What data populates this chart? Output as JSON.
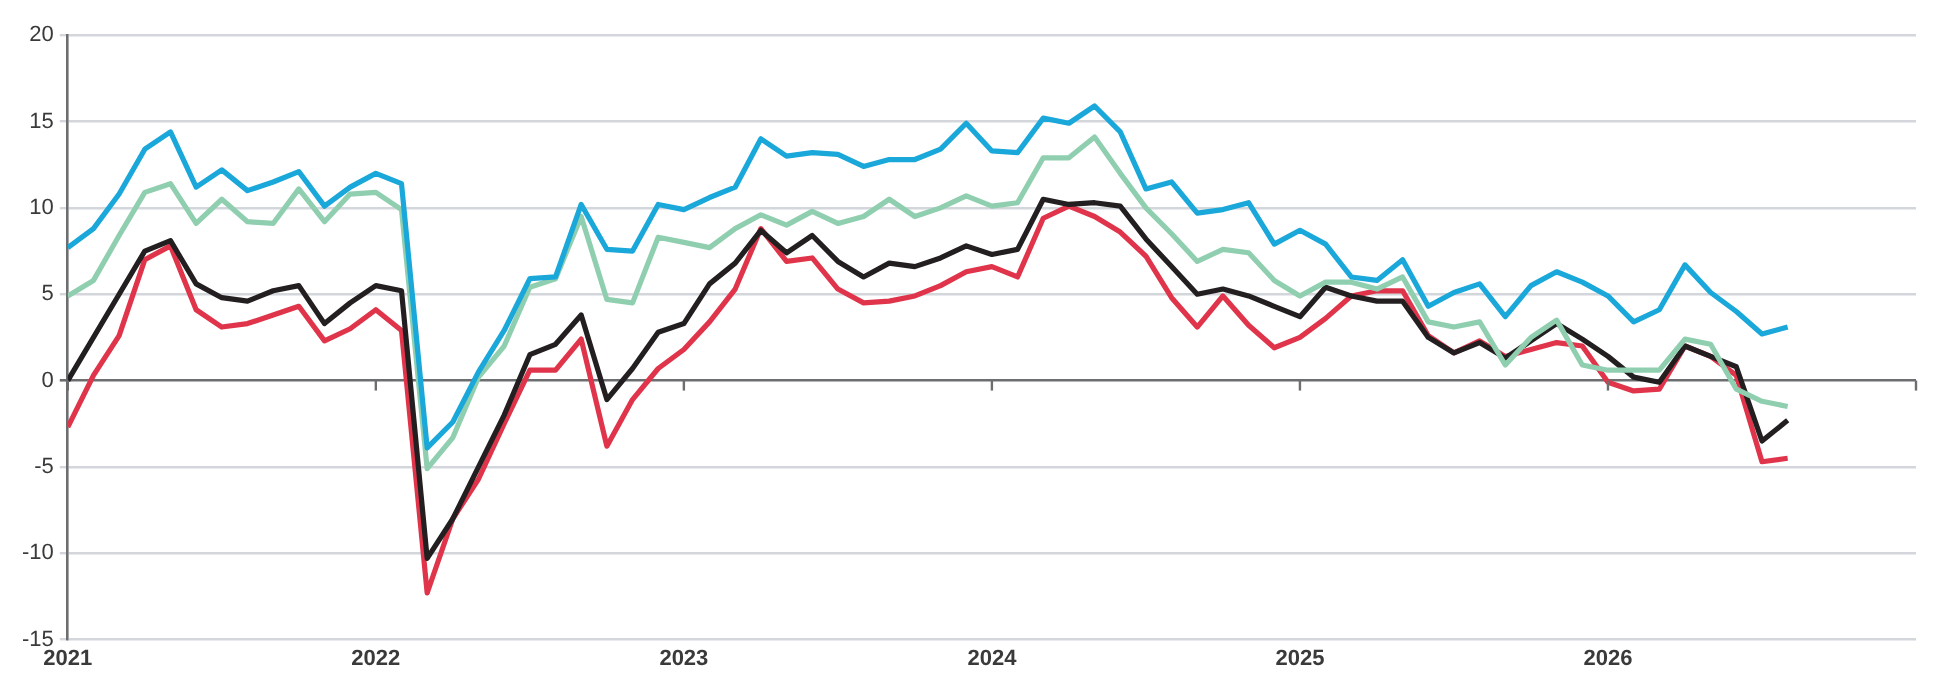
{
  "chart_data": {
    "type": "line",
    "x": [
      "2021-01",
      "2021-02",
      "2021-03",
      "2021-04",
      "2021-05",
      "2021-06",
      "2021-07",
      "2021-08",
      "2021-09",
      "2021-10",
      "2021-11",
      "2021-12",
      "2022-01",
      "2022-02",
      "2022-03",
      "2022-04",
      "2022-05",
      "2022-06",
      "2022-07",
      "2022-08",
      "2022-09",
      "2022-10",
      "2022-11",
      "2022-12",
      "2023-01",
      "2023-02",
      "2023-03",
      "2023-04",
      "2023-05",
      "2023-06",
      "2023-07",
      "2023-08",
      "2023-09",
      "2023-10",
      "2023-11",
      "2023-12",
      "2024-01",
      "2024-02",
      "2024-03",
      "2024-04",
      "2024-05",
      "2024-06",
      "2024-07",
      "2024-08",
      "2024-09",
      "2024-10",
      "2024-11",
      "2024-12",
      "2025-01",
      "2025-02",
      "2025-03",
      "2025-04",
      "2025-05",
      "2025-06",
      "2025-07",
      "2025-08",
      "2025-09",
      "2025-10",
      "2025-11",
      "2025-12",
      "2026-01",
      "2026-02",
      "2026-03",
      "2026-04",
      "2026-05",
      "2026-06",
      "2026-07",
      "2026-08"
    ],
    "series": [
      {
        "color": "#1aa7d9",
        "values": [
          7.7,
          8.8,
          10.8,
          13.4,
          14.4,
          11.2,
          12.2,
          11.0,
          11.5,
          12.1,
          10.1,
          11.2,
          12.0,
          11.4,
          -3.9,
          -2.4,
          0.5,
          2.9,
          5.9,
          6.0,
          10.2,
          7.6,
          7.5,
          10.2,
          9.9,
          10.6,
          11.2,
          14.0,
          13.0,
          13.2,
          13.1,
          12.4,
          12.8,
          12.8,
          13.4,
          14.9,
          13.3,
          13.2,
          15.2,
          14.9,
          15.9,
          14.4,
          11.1,
          11.5,
          9.7,
          9.9,
          10.3,
          7.9,
          8.7,
          7.9,
          6.0,
          5.8,
          7.0,
          4.3,
          5.1,
          5.6,
          3.7,
          5.5,
          6.3,
          5.7,
          4.9,
          3.4,
          4.1,
          6.7,
          5.1,
          4.0,
          2.7,
          3.1
        ]
      },
      {
        "color": "#8fcfb0",
        "values": [
          4.9,
          5.8,
          8.4,
          10.9,
          11.4,
          9.1,
          10.5,
          9.2,
          9.1,
          11.1,
          9.2,
          10.8,
          10.9,
          9.9,
          -5.1,
          -3.3,
          0.2,
          2.0,
          5.4,
          5.9,
          9.5,
          4.7,
          4.5,
          8.3,
          8.0,
          7.7,
          8.8,
          9.6,
          9.0,
          9.8,
          9.1,
          9.5,
          10.5,
          9.5,
          10.0,
          10.7,
          10.1,
          10.3,
          12.9,
          12.9,
          14.1,
          12.0,
          10.0,
          8.5,
          6.9,
          7.6,
          7.4,
          5.8,
          4.9,
          5.7,
          5.7,
          5.3,
          6.0,
          3.4,
          3.1,
          3.4,
          0.9,
          2.5,
          3.5,
          0.9,
          0.6,
          0.6,
          0.6,
          2.4,
          2.1,
          -0.5,
          -1.2,
          -1.5
        ]
      },
      {
        "color": "#231f20",
        "values": [
          0.0,
          2.5,
          5.0,
          7.5,
          8.1,
          5.6,
          4.8,
          4.6,
          5.2,
          5.5,
          3.3,
          4.5,
          5.5,
          5.2,
          -10.3,
          -8.0,
          -5.0,
          -2.0,
          1.5,
          2.1,
          3.8,
          -1.1,
          0.7,
          2.8,
          3.3,
          5.6,
          6.8,
          8.7,
          7.4,
          8.4,
          6.9,
          6.0,
          6.8,
          6.6,
          7.1,
          7.8,
          7.3,
          7.6,
          10.5,
          10.2,
          10.3,
          10.1,
          8.2,
          6.6,
          5.0,
          5.3,
          4.9,
          4.3,
          3.7,
          5.4,
          4.9,
          4.6,
          4.6,
          2.5,
          1.6,
          2.2,
          1.3,
          2.3,
          3.3,
          2.4,
          1.4,
          0.2,
          -0.1,
          2.0,
          1.4,
          0.8,
          -3.5,
          -2.3
        ]
      },
      {
        "color": "#e0344b",
        "values": [
          -2.7,
          0.3,
          2.6,
          7.0,
          7.8,
          4.1,
          3.1,
          3.3,
          3.8,
          4.3,
          2.3,
          3.0,
          4.1,
          2.9,
          -12.3,
          -8.0,
          -5.7,
          -2.5,
          0.6,
          0.6,
          2.4,
          -3.8,
          -1.1,
          0.7,
          1.8,
          3.4,
          5.3,
          8.8,
          6.9,
          7.1,
          5.3,
          4.5,
          4.6,
          4.9,
          5.5,
          6.3,
          6.6,
          6.0,
          9.4,
          10.1,
          9.5,
          8.6,
          7.2,
          4.8,
          3.1,
          4.9,
          3.2,
          1.9,
          2.5,
          3.6,
          4.9,
          5.2,
          5.2,
          2.6,
          1.6,
          2.3,
          1.4,
          1.8,
          2.2,
          2.0,
          -0.1,
          -0.6,
          -0.5,
          2.0,
          1.4,
          0.3,
          -4.7,
          -4.5
        ]
      }
    ],
    "xlim": [
      "2021",
      "2027"
    ],
    "xticks": [
      "2021",
      "2022",
      "2023",
      "2024",
      "2025",
      "2026",
      {
        "value": "2027",
        "label": null
      }
    ],
    "ylim": [
      -15,
      20
    ],
    "yticks": [
      -15,
      -10,
      -5,
      0,
      5,
      10,
      15,
      20
    ],
    "grid": "y",
    "legend": false,
    "marker": "none",
    "line_style": "solid"
  }
}
